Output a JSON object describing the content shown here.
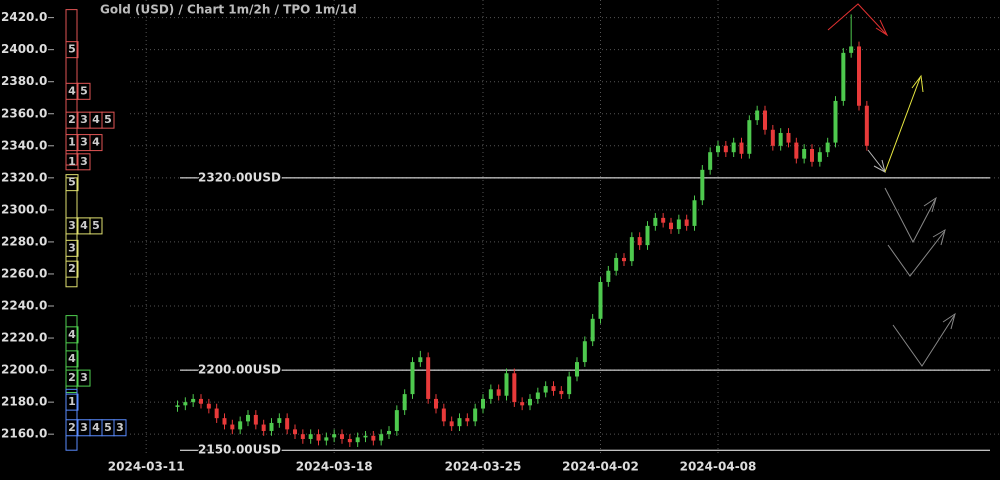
{
  "chart_data": {
    "type": "candlestick",
    "title": "Gold (USD) /  Chart 1m/2h / TPO 1m/1d",
    "ylim": [
      2147,
      2431
    ],
    "yticks": [
      {
        "value": 2160,
        "label": "2160.0"
      },
      {
        "value": 2180,
        "label": "2180.0"
      },
      {
        "value": 2200,
        "label": "2200.0"
      },
      {
        "value": 2220,
        "label": "2220.0"
      },
      {
        "value": 2240,
        "label": "2240.0"
      },
      {
        "value": 2260,
        "label": "2260.0"
      },
      {
        "value": 2280,
        "label": "2280.0"
      },
      {
        "value": 2300,
        "label": "2300.0"
      },
      {
        "value": 2320,
        "label": "2320.0"
      },
      {
        "value": 2340,
        "label": "2340.0"
      },
      {
        "value": 2360,
        "label": "2360.0"
      },
      {
        "value": 2380,
        "label": "2380.0"
      },
      {
        "value": 2400,
        "label": "2400.0"
      },
      {
        "value": 2420,
        "label": "2420.0"
      }
    ],
    "xlim": [
      -15,
      105
    ],
    "xticks": [
      {
        "value": -4,
        "label": "2024-03-11"
      },
      {
        "value": 20,
        "label": "2024-03-18"
      },
      {
        "value": 39,
        "label": "2024-03-25"
      },
      {
        "value": 54,
        "label": "2024-04-02"
      },
      {
        "value": 69,
        "label": "2024-04-08"
      }
    ],
    "grid": true,
    "up_color": "#4ec94e",
    "down_color": "#e83a3a",
    "candles": {
      "open": [
        2177,
        2178,
        2180,
        2182,
        2179,
        2176,
        2170,
        2166,
        2163,
        2168,
        2172,
        2166,
        2162,
        2167,
        2170,
        2163,
        2160,
        2157,
        2160,
        2156,
        2158,
        2160,
        2157,
        2155,
        2158,
        2159,
        2156,
        2160,
        2162,
        2175,
        2185,
        2205,
        2208,
        2182,
        2176,
        2168,
        2165,
        2170,
        2168,
        2176,
        2182,
        2188,
        2184,
        2198,
        2180,
        2178,
        2182,
        2186,
        2190,
        2187,
        2185,
        2196,
        2205,
        2218,
        2232,
        2255,
        2262,
        2270,
        2268,
        2283,
        2278,
        2290,
        2295,
        2292,
        2288,
        2294,
        2290,
        2306,
        2325,
        2336,
        2340,
        2336,
        2342,
        2335,
        2356,
        2362,
        2350,
        2340,
        2348,
        2342,
        2332,
        2338,
        2330,
        2336,
        2342,
        2368,
        2398,
        2402,
        2365
      ],
      "high": [
        2181,
        2183,
        2185,
        2185,
        2182,
        2179,
        2173,
        2169,
        2171,
        2175,
        2175,
        2169,
        2170,
        2173,
        2173,
        2166,
        2163,
        2163,
        2163,
        2161,
        2163,
        2163,
        2160,
        2161,
        2162,
        2162,
        2163,
        2165,
        2178,
        2188,
        2208,
        2212,
        2211,
        2185,
        2179,
        2171,
        2173,
        2173,
        2179,
        2185,
        2191,
        2191,
        2201,
        2201,
        2183,
        2185,
        2189,
        2193,
        2193,
        2190,
        2199,
        2208,
        2221,
        2235,
        2258,
        2265,
        2273,
        2273,
        2286,
        2286,
        2293,
        2298,
        2298,
        2295,
        2297,
        2297,
        2309,
        2328,
        2339,
        2343,
        2343,
        2345,
        2345,
        2359,
        2365,
        2365,
        2353,
        2351,
        2351,
        2345,
        2341,
        2341,
        2339,
        2345,
        2371,
        2401,
        2422,
        2405,
        2368
      ],
      "low": [
        2174,
        2175,
        2177,
        2176,
        2173,
        2167,
        2163,
        2160,
        2160,
        2165,
        2163,
        2159,
        2159,
        2164,
        2160,
        2157,
        2154,
        2154,
        2153,
        2153,
        2155,
        2154,
        2152,
        2152,
        2155,
        2153,
        2153,
        2157,
        2159,
        2172,
        2182,
        2202,
        2179,
        2173,
        2165,
        2162,
        2162,
        2165,
        2165,
        2173,
        2179,
        2181,
        2181,
        2177,
        2175,
        2175,
        2179,
        2183,
        2184,
        2182,
        2182,
        2193,
        2202,
        2215,
        2229,
        2252,
        2259,
        2265,
        2265,
        2275,
        2275,
        2287,
        2289,
        2285,
        2285,
        2287,
        2287,
        2303,
        2322,
        2333,
        2333,
        2333,
        2332,
        2332,
        2353,
        2347,
        2337,
        2337,
        2339,
        2329,
        2329,
        2327,
        2327,
        2333,
        2339,
        2365,
        2395,
        2362,
        2337
      ],
      "close": [
        2178,
        2180,
        2182,
        2179,
        2176,
        2170,
        2166,
        2163,
        2168,
        2172,
        2166,
        2162,
        2167,
        2170,
        2163,
        2160,
        2157,
        2160,
        2156,
        2158,
        2160,
        2157,
        2155,
        2158,
        2159,
        2156,
        2160,
        2162,
        2175,
        2185,
        2205,
        2208,
        2182,
        2176,
        2168,
        2165,
        2170,
        2168,
        2176,
        2182,
        2188,
        2184,
        2198,
        2180,
        2178,
        2182,
        2186,
        2190,
        2187,
        2185,
        2196,
        2205,
        2218,
        2232,
        2255,
        2262,
        2270,
        2268,
        2283,
        2278,
        2290,
        2295,
        2292,
        2288,
        2294,
        2290,
        2306,
        2325,
        2336,
        2340,
        2336,
        2342,
        2335,
        2356,
        2362,
        2350,
        2340,
        2348,
        2342,
        2332,
        2338,
        2330,
        2336,
        2342,
        2368,
        2398,
        2402,
        2365,
        2340
      ]
    },
    "levels": [
      {
        "value": 2320,
        "label": "2320.00USD"
      },
      {
        "value": 2200,
        "label": "2200.00USD"
      },
      {
        "value": 2150,
        "label": "2150.00USD"
      }
    ],
    "tpo": [
      {
        "color": "#e05555",
        "low": 2328,
        "high": 2425,
        "rows": [
          {
            "price": 2400,
            "labels": [
              "5"
            ]
          },
          {
            "price": 2374,
            "labels": [
              "4",
              "5"
            ]
          },
          {
            "price": 2356,
            "labels": [
              "2",
              "3",
              "4",
              "5"
            ]
          },
          {
            "price": 2342,
            "labels": [
              "1",
              "3",
              "4"
            ]
          },
          {
            "price": 2330,
            "labels": [
              "1",
              "3"
            ]
          }
        ]
      },
      {
        "color": "#e0e070",
        "low": 2252,
        "high": 2320,
        "rows": [
          {
            "price": 2317,
            "labels": [
              "5"
            ]
          },
          {
            "price": 2290,
            "labels": [
              "3",
              "4",
              "5"
            ]
          },
          {
            "price": 2276,
            "labels": [
              "3"
            ]
          },
          {
            "price": 2263,
            "labels": [
              "2"
            ]
          }
        ]
      },
      {
        "color": "#50d050",
        "low": 2186,
        "high": 2234,
        "rows": [
          {
            "price": 2222,
            "labels": [
              "4"
            ]
          },
          {
            "price": 2207,
            "labels": [
              "4"
            ]
          },
          {
            "price": 2195,
            "labels": [
              "2",
              "3"
            ]
          }
        ]
      },
      {
        "color": "#5a8cff",
        "low": 2150,
        "high": 2188,
        "rows": [
          {
            "price": 2180,
            "labels": [
              "1"
            ]
          },
          {
            "price": 2164,
            "labels": [
              "2",
              "3",
              "4",
              "5",
              "3"
            ]
          }
        ]
      }
    ]
  }
}
